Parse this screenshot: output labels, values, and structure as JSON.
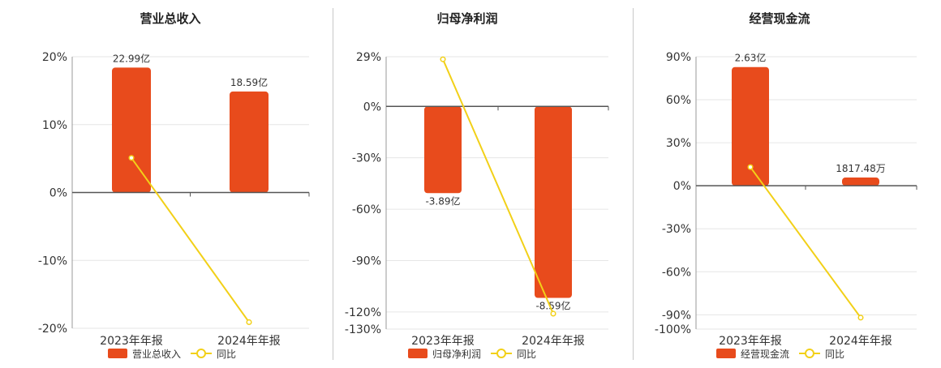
{
  "colors": {
    "bar": "#E84B1C",
    "line": "#F2D018",
    "axis": "#555555",
    "grid": "#e6e6e6",
    "text": "#333333"
  },
  "chart_data": [
    {
      "type": "bar",
      "title": "营业总收入",
      "categories": [
        "2023年年报",
        "2024年年报"
      ],
      "bar_values": [
        22.99,
        18.59
      ],
      "bar_labels": [
        "22.99亿",
        "18.59亿"
      ],
      "line_values": [
        5.1,
        -19.1
      ],
      "yticks": [
        "20%",
        "10%",
        "0%",
        "-10%",
        "-20%"
      ],
      "ylim": [
        -20,
        20
      ],
      "legend": [
        "营业总收入",
        "同比"
      ],
      "legend_position": "bottom"
    },
    {
      "type": "bar",
      "title": "归母净利润",
      "categories": [
        "2023年年报",
        "2024年年报"
      ],
      "bar_values": [
        -3.89,
        -8.59
      ],
      "bar_labels": [
        "-3.89亿",
        "-8.59亿"
      ],
      "line_values": [
        27.5,
        -121.0
      ],
      "yticks": [
        "29%",
        "0%",
        "-30%",
        "-60%",
        "-90%",
        "-120%",
        "-130%"
      ],
      "ylim": [
        -130,
        29
      ],
      "legend": [
        "归母净利润",
        "同比"
      ],
      "legend_position": "bottom"
    },
    {
      "type": "bar",
      "title": "经营现金流",
      "categories": [
        "2023年年报",
        "2024年年报"
      ],
      "bar_values": [
        2.63,
        0.181748
      ],
      "bar_labels": [
        "2.63亿",
        "1817.48万"
      ],
      "line_values": [
        13.0,
        -92.0
      ],
      "yticks": [
        "90%",
        "60%",
        "30%",
        "0%",
        "-30%",
        "-60%",
        "-90%",
        "-100%"
      ],
      "ylim": [
        -100,
        90
      ],
      "legend": [
        "经营现金流",
        "同比"
      ],
      "legend_position": "bottom"
    }
  ]
}
